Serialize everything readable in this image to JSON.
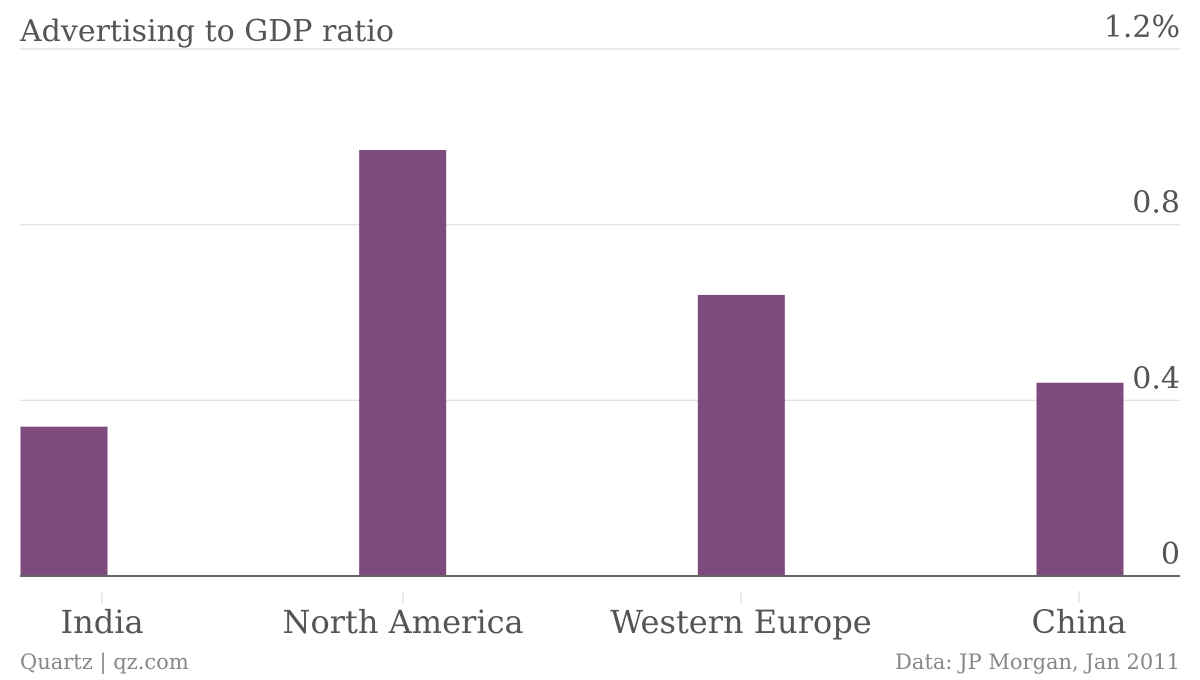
{
  "chart_data": {
    "type": "bar",
    "title": "Advertising to GDP ratio",
    "categories": [
      "India",
      "North America",
      "Western Europe",
      "China"
    ],
    "values": [
      0.34,
      0.97,
      0.64,
      0.44
    ],
    "ylim": [
      0,
      1.2
    ],
    "yticks": [
      "0",
      "0.4",
      "0.8",
      "1.2%"
    ],
    "ytick_values": [
      0,
      0.4,
      0.8,
      1.2
    ],
    "y_axis_side": "right",
    "grid": true,
    "xlabel": "",
    "ylabel": ""
  },
  "colors": {
    "bar": "#7f4b7e",
    "grid": "#e3e3e3",
    "baseline": "#666666",
    "text": "#555555",
    "footer_text": "#888888"
  },
  "footer": {
    "credit": "Quartz | qz.com",
    "source": "Data: JP Morgan, Jan 2011"
  }
}
